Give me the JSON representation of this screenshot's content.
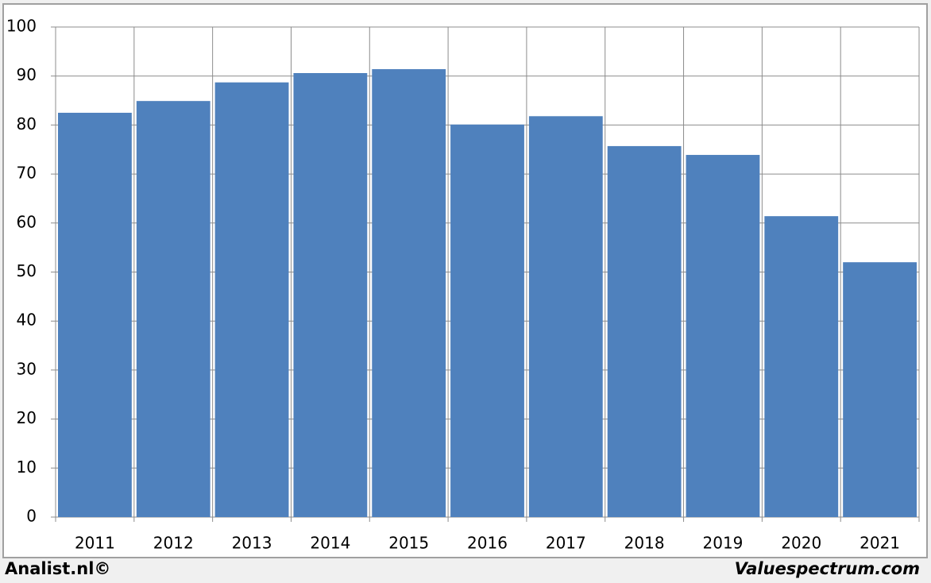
{
  "chart_data": {
    "type": "bar",
    "categories": [
      "2011",
      "2012",
      "2013",
      "2014",
      "2015",
      "2016",
      "2017",
      "2018",
      "2019",
      "2020",
      "2021"
    ],
    "values": [
      82.5,
      84.9,
      88.7,
      90.6,
      91.4,
      80.1,
      81.8,
      75.7,
      73.9,
      61.4,
      52.0
    ],
    "color": "#4f81bd",
    "ylim": [
      0,
      100
    ],
    "yticks": [
      0,
      10,
      20,
      30,
      40,
      50,
      60,
      70,
      80,
      90,
      100
    ],
    "grid": true,
    "annotations": [
      "Analist.nl©",
      "Valuespectrum.com"
    ]
  }
}
